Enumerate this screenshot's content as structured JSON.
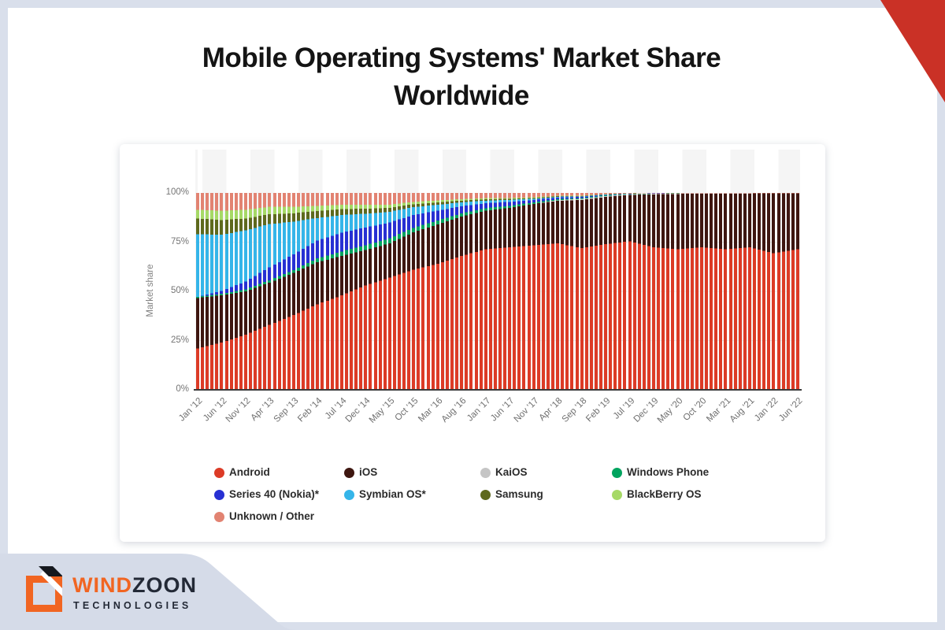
{
  "page": {
    "title_line1": "Mobile Operating Systems' Market Share",
    "title_line2": "Worldwide"
  },
  "brand": {
    "name_part1": "WIND",
    "name_part2": "ZOON",
    "subtitle": "TECHNOLOGIES"
  },
  "colors": {
    "corner_red": "#ca3126",
    "page_border": "#d9dfeb",
    "footer_band": "#d5dbe8",
    "brand_orange": "#f16522",
    "brand_navy": "#232936",
    "axis_line": "#3b3b3b",
    "stripe": "#f5f5f5"
  },
  "chart_data": {
    "type": "bar",
    "subtype": "stacked-100-percent-monthly",
    "title": "Mobile Operating Systems' Market Share Worldwide",
    "xlabel": "",
    "ylabel": "Market share",
    "ylim": [
      0,
      100
    ],
    "y_ticks": [
      "0%",
      "25%",
      "50%",
      "75%",
      "100%"
    ],
    "grid": "vertical-stripes",
    "legend_position": "bottom",
    "months_total": 126,
    "anchor_step_months": 5,
    "categories": [
      "Jan '12",
      "Jun '12",
      "Nov '12",
      "Apr '13",
      "Sep '13",
      "Feb '14",
      "Jul '14",
      "Dec '14",
      "May '15",
      "Oct '15",
      "Mar '16",
      "Aug '16",
      "Jan '17",
      "Jun '17",
      "Nov '17",
      "Apr '18",
      "Sep '18",
      "Feb '19",
      "Jul '19",
      "Dec '19",
      "May '20",
      "Oct '20",
      "Mar '21",
      "Aug '21",
      "Jan '22",
      "Jun '22"
    ],
    "series": [
      {
        "name": "Android",
        "color": "#dc3b26",
        "values": [
          21,
          24,
          28,
          33,
          38,
          43.5,
          48,
          53,
          57,
          61,
          64,
          68,
          71.5,
          72.5,
          73.5,
          74.5,
          72,
          74,
          75.5,
          72.5,
          71.5,
          72.5,
          71.5,
          72.5,
          69.5,
          71.5
        ]
      },
      {
        "name": "iOS",
        "color": "#3e1610",
        "values": [
          25.7,
          24,
          22,
          21.5,
          21.4,
          21.3,
          20,
          18,
          17.5,
          19,
          20,
          20,
          19.5,
          20,
          21,
          21.5,
          24.5,
          24,
          23.5,
          26.8,
          28,
          27.1,
          28.2,
          27.2,
          30.3,
          28.3
        ]
      },
      {
        "name": "KaiOS",
        "color": "#c5c5c5",
        "values": [
          0,
          0,
          0,
          0,
          0,
          0,
          0,
          0,
          0,
          0,
          0,
          0,
          0,
          0,
          0,
          0.3,
          0.5,
          0.5,
          0.3,
          0.25,
          0.2,
          0.15,
          0.1,
          0.1,
          0.05,
          0.05
        ]
      },
      {
        "name": "Windows Phone",
        "color": "#00a45f",
        "values": [
          0.5,
          0.8,
          1,
          1.2,
          1.5,
          2,
          2.3,
          2.5,
          2.5,
          2.3,
          2,
          1.6,
          1.3,
          1,
          0.7,
          0.5,
          0.4,
          0.3,
          0.2,
          0.1,
          0.05,
          0.05,
          0,
          0,
          0,
          0
        ]
      },
      {
        "name": "Series 40 (Nokia)*",
        "color": "#2730d3",
        "values": [
          0,
          1.5,
          4,
          6.5,
          8,
          9,
          9.5,
          9,
          8,
          6.5,
          5,
          3.6,
          2.5,
          2,
          1.3,
          0.9,
          0.6,
          0.3,
          0.1,
          0.1,
          0.05,
          0,
          0,
          0,
          0,
          0
        ]
      },
      {
        "name": "Symbian OS*",
        "color": "#35b5e9",
        "values": [
          31.8,
          28.5,
          26,
          22,
          16.5,
          11.5,
          9,
          7,
          5.5,
          4,
          3,
          2,
          1.3,
          1,
          0.6,
          0.4,
          0.3,
          0.1,
          0.05,
          0,
          0,
          0,
          0,
          0,
          0,
          0
        ]
      },
      {
        "name": "Samsung",
        "color": "#5e691d",
        "values": [
          8,
          7.5,
          6,
          5,
          4.3,
          3.5,
          3,
          2.5,
          2,
          1.5,
          1.2,
          0.9,
          0.7,
          0.5,
          0.4,
          0.3,
          0.2,
          0.1,
          0.05,
          0,
          0,
          0,
          0,
          0,
          0,
          0
        ]
      },
      {
        "name": "BlackBerry OS",
        "color": "#a6d966",
        "values": [
          4.5,
          4.7,
          4.5,
          3.8,
          3.3,
          2.7,
          2.2,
          2,
          1.6,
          1.2,
          1,
          0.8,
          0.6,
          0.5,
          0.3,
          0.2,
          0.1,
          0.1,
          0,
          0,
          0,
          0,
          0,
          0,
          0,
          0
        ]
      },
      {
        "name": "Unknown / Other",
        "color": "#e28372",
        "values": [
          8.5,
          9,
          8.5,
          7,
          7,
          6.5,
          6,
          6,
          5.9,
          4.5,
          3.8,
          3.1,
          2.6,
          2.5,
          2.2,
          1.4,
          1.4,
          0.6,
          0.3,
          0.25,
          0.2,
          0.2,
          0.2,
          0.2,
          0.15,
          0.15
        ]
      }
    ]
  }
}
